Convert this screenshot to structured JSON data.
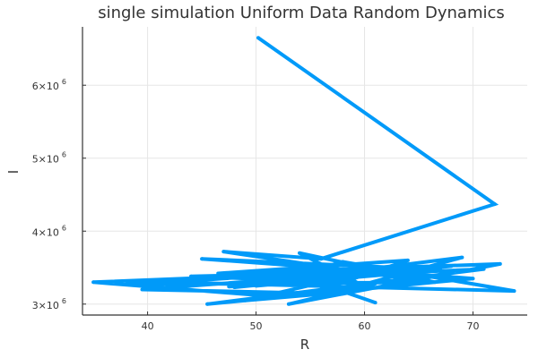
{
  "chart_data": {
    "type": "line",
    "title": "single simulation Uniform Data Random Dynamics",
    "xlabel": "R",
    "ylabel": "I",
    "xlim": [
      34,
      75
    ],
    "ylim": [
      2850000,
      6800000
    ],
    "x_ticks": [
      {
        "value": 40,
        "label": "40"
      },
      {
        "value": 50,
        "label": "50"
      },
      {
        "value": 60,
        "label": "60"
      },
      {
        "value": 70,
        "label": "70"
      }
    ],
    "y_ticks": [
      {
        "value": 3000000,
        "mantissa": "3×10",
        "exponent": "6"
      },
      {
        "value": 4000000,
        "mantissa": "4×10",
        "exponent": "6"
      },
      {
        "value": 5000000,
        "mantissa": "5×10",
        "exponent": "6"
      },
      {
        "value": 6000000,
        "mantissa": "6×10",
        "exponent": "6"
      }
    ],
    "grid": true,
    "legend": "none",
    "series": [
      {
        "color": "#009af9",
        "x": [
          50.2,
          72.0,
          56.0,
          47.0,
          66.0,
          38.0,
          63.0,
          45.0,
          70.0,
          52.0,
          35.0,
          60.0,
          48.0,
          68.0,
          39.5,
          55.0,
          64.0,
          46.5,
          72.5,
          53.0,
          61.0,
          44.0,
          67.0,
          50.0,
          58.0,
          73.8,
          42.0,
          62.0,
          49.0,
          57.0,
          69.0,
          47.5,
          59.0,
          54.0,
          66.5,
          45.5,
          71.0,
          51.0,
          56.5,
          61.0
        ],
        "y": [
          6650000,
          4370000,
          3620000,
          3720000,
          3300000,
          3270000,
          3500000,
          3620000,
          3350000,
          3100000,
          3300000,
          3450000,
          3230000,
          3520000,
          3200000,
          3150000,
          3600000,
          3420000,
          3550000,
          3000000,
          3280000,
          3380000,
          3470000,
          3250000,
          3580000,
          3180000,
          3300000,
          3500000,
          3050000,
          3150000,
          3640000,
          3240000,
          3320000,
          3700000,
          3300000,
          3000000,
          3480000,
          3350000,
          3250000,
          3020000
        ]
      }
    ]
  }
}
